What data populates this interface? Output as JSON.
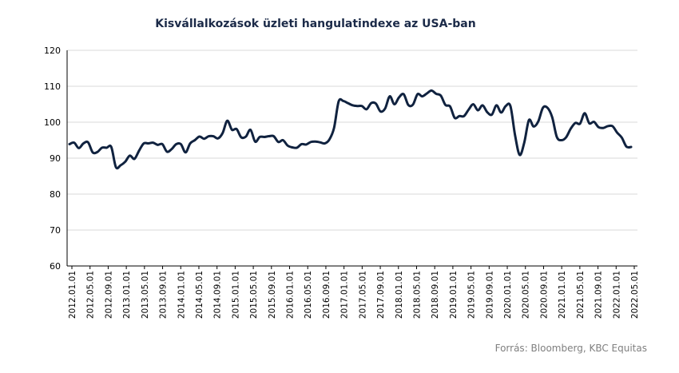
{
  "chart_data": {
    "type": "line",
    "title": "Kisvállalkozások üzleti hangulatindexe  az USA-ban",
    "source": "Forrás: Bloomberg, KBC Equitas",
    "ylim": [
      60,
      120
    ],
    "yticks": [
      60,
      70,
      80,
      90,
      100,
      110,
      120
    ],
    "grid": true,
    "legend": "none",
    "xtick_labels": [
      "2012.01.01",
      "2012.05.01",
      "2012.09.01",
      "2013.01.01",
      "2013.05.01",
      "2013.09.01",
      "2014.01.01",
      "2014.05.01",
      "2014.09.01",
      "2015.01.01",
      "2015.05.01",
      "2015.09.01",
      "2016.01.01",
      "2016.05.01",
      "2016.09.01",
      "2017.01.01",
      "2017.05.01",
      "2017.09.01",
      "2018.01.01",
      "2018.05.01",
      "2018.09.01",
      "2019.01.01",
      "2019.05.01",
      "2019.09.01",
      "2020.01.01",
      "2020.05.01",
      "2020.09.01",
      "2021.01.01",
      "2021.05.01",
      "2021.09.01",
      "2022.01.01",
      "2022.05.01"
    ],
    "line_color": "#10223f",
    "series": [
      {
        "values": [
          93.9,
          94.3,
          92.8,
          94.1,
          94.4,
          91.6,
          91.7,
          92.9,
          92.9,
          93.1,
          87.5,
          88.0,
          89.0,
          90.7,
          89.8,
          92.1,
          94.1,
          94.1,
          94.3,
          93.7,
          93.9,
          91.8,
          92.5,
          93.9,
          93.9,
          91.6,
          94.1,
          95.0,
          96.0,
          95.4,
          96.1,
          96.1,
          95.5,
          97.0,
          100.4,
          97.9,
          98.1,
          95.8,
          96.0,
          97.9,
          94.6,
          95.9,
          95.9,
          96.1,
          96.1,
          94.5,
          95.0,
          93.5,
          93.0,
          92.9,
          93.9,
          93.8,
          94.5,
          94.6,
          94.4,
          94.1,
          95.2,
          98.4,
          105.8,
          105.9,
          105.3,
          104.7,
          104.5,
          104.5,
          103.6,
          105.3,
          105.2,
          103.0,
          103.8,
          107.2,
          105.0,
          106.9,
          107.8,
          104.8,
          104.9,
          107.8,
          107.2,
          108.0,
          108.8,
          107.9,
          107.4,
          104.8,
          104.4,
          101.2,
          101.7,
          101.7,
          103.5,
          105.0,
          103.3,
          104.7,
          102.8,
          102.1,
          104.7,
          102.7,
          104.5,
          104.5,
          96.4,
          90.9,
          94.4,
          100.6,
          98.8,
          100.2,
          104.0,
          104.0,
          101.4,
          95.9,
          95.0,
          95.8,
          98.2,
          99.8,
          99.6,
          102.5,
          99.7,
          100.1,
          98.6,
          98.4,
          98.9,
          98.9,
          97.1,
          95.7,
          93.2,
          93.1
        ]
      }
    ]
  }
}
